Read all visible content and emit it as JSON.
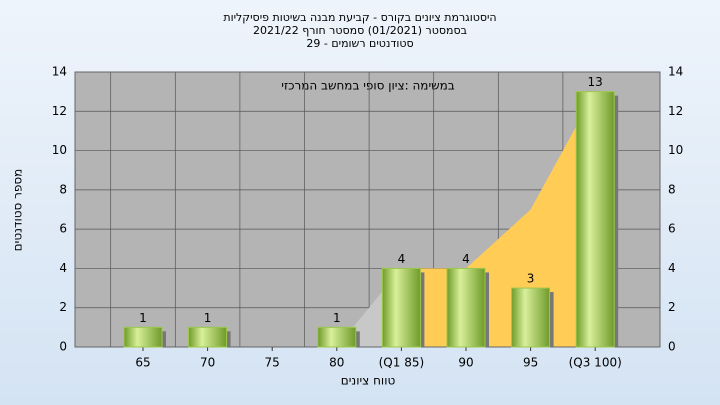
{
  "chart_data": {
    "type": "bar",
    "title": [
      "היסטוגרמת ציונים בקורס - קביעת מבנה בשיטות פיסיקליות",
      "בסמסטר  (01/2021)  סמסטר חורף 2021/22",
      "סטודנטים רשומים - 29"
    ],
    "annotation": "במשימה :ציון סופי במחשב המרכזי",
    "xlabel": "טווח ציונים",
    "ylabel": "מספר סטודנטים",
    "categories": [
      "65",
      "70",
      "75",
      "80",
      "(Q1 85)",
      "90",
      "95",
      "(Q3 100)"
    ],
    "values": [
      1,
      1,
      null,
      1,
      4,
      4,
      3,
      13
    ],
    "color": "#9cc84a",
    "area": {
      "values": [
        null,
        null,
        null,
        0,
        4,
        4,
        7,
        13
      ],
      "colors": [
        "#c8c8c8",
        "#ffcc55"
      ]
    },
    "ylim": [
      0,
      14
    ],
    "yticks": [
      0,
      2,
      4,
      6,
      8,
      10,
      12,
      14
    ],
    "grid": true
  }
}
